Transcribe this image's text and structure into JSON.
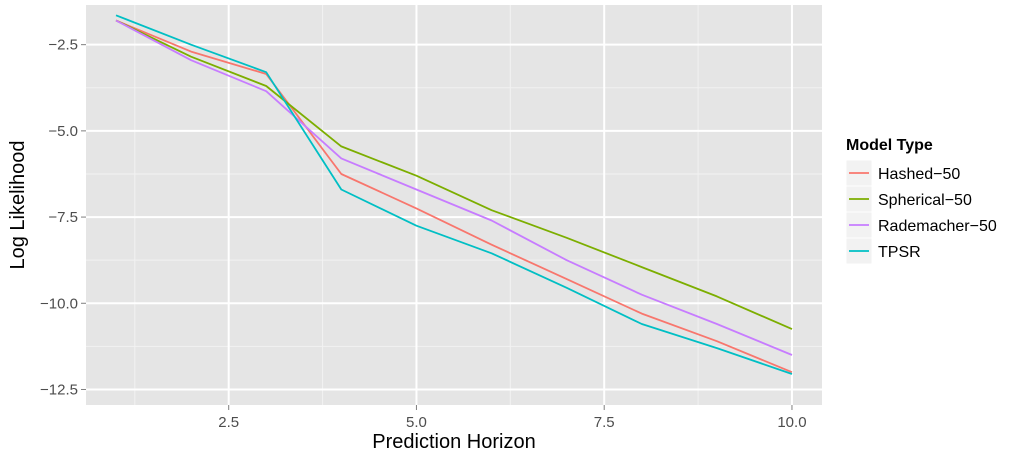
{
  "chart_data": {
    "type": "line",
    "title": "",
    "xlabel": "Prediction Horizon",
    "ylabel": "Log Likelihood",
    "xlim": [
      0.6,
      10.4
    ],
    "ylim": [
      -12.95,
      -1.35
    ],
    "x_ticks": [
      2.5,
      5.0,
      7.5,
      10.0
    ],
    "x_tick_labels": [
      "2.5",
      "5.0",
      "7.5",
      "10.0"
    ],
    "y_ticks": [
      -2.5,
      -5.0,
      -7.5,
      -10.0,
      -12.5
    ],
    "y_tick_labels": [
      "−2.5",
      "−5.0",
      "−7.5",
      "−10.0",
      "−12.5"
    ],
    "grid": true,
    "legend_title": "Model Type",
    "legend_position": "right",
    "x": [
      1,
      2,
      3,
      4,
      5,
      6,
      7,
      8,
      9,
      10
    ],
    "series": [
      {
        "name": "Hashed−50",
        "color": "#F8766D",
        "values": [
          -1.8,
          -2.7,
          -3.35,
          -6.25,
          -7.25,
          -8.3,
          -9.3,
          -10.3,
          -11.1,
          -12.0
        ]
      },
      {
        "name": "Spherical−50",
        "color": "#7CAE00",
        "values": [
          -1.8,
          -2.85,
          -3.7,
          -5.45,
          -6.3,
          -7.3,
          -8.1,
          -8.95,
          -9.8,
          -10.75
        ]
      },
      {
        "name": "Rademacher−50",
        "color": "#C77CFF",
        "values": [
          -1.8,
          -2.95,
          -3.85,
          -5.8,
          -6.7,
          -7.6,
          -8.75,
          -9.75,
          -10.6,
          -11.5
        ]
      },
      {
        "name": "TPSR",
        "color": "#00BFC4",
        "values": [
          -1.65,
          -2.5,
          -3.3,
          -6.7,
          -7.75,
          -8.55,
          -9.55,
          -10.6,
          -11.3,
          -12.05
        ]
      }
    ]
  }
}
